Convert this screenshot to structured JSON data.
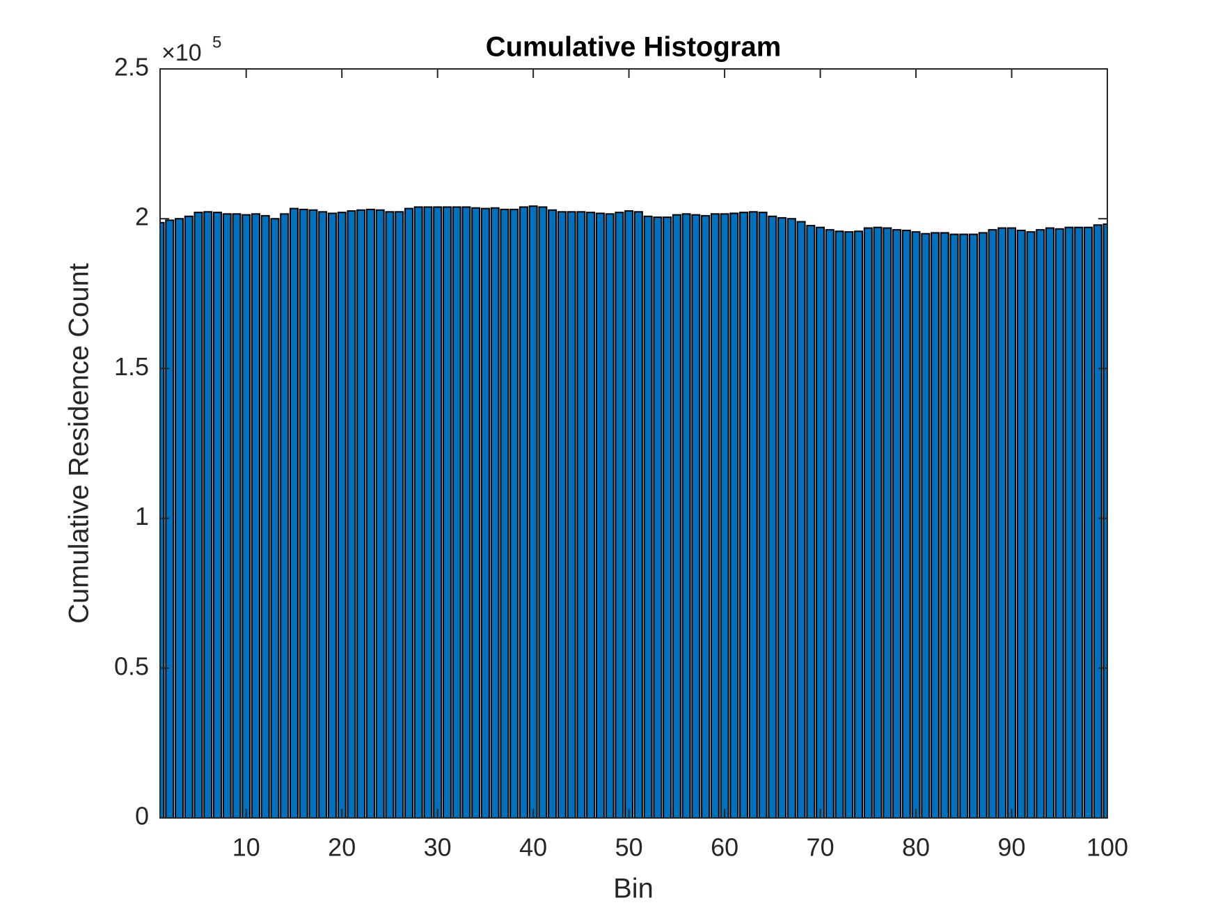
{
  "chart_data": {
    "type": "bar",
    "title": "Cumulative Histogram",
    "x_label": "Bin",
    "y_label": "Cumulative Residence Count",
    "y_multiplier": "×10",
    "y_exponent": "5",
    "x": [
      1,
      2,
      3,
      4,
      5,
      6,
      7,
      8,
      9,
      10,
      11,
      12,
      13,
      14,
      15,
      16,
      17,
      18,
      19,
      20,
      21,
      22,
      23,
      24,
      25,
      26,
      27,
      28,
      29,
      30,
      31,
      32,
      33,
      34,
      35,
      36,
      37,
      38,
      39,
      40,
      41,
      42,
      43,
      44,
      45,
      46,
      47,
      48,
      49,
      50,
      51,
      52,
      53,
      54,
      55,
      56,
      57,
      58,
      59,
      60,
      61,
      62,
      63,
      64,
      65,
      66,
      67,
      68,
      69,
      70,
      71,
      72,
      73,
      74,
      75,
      76,
      77,
      78,
      79,
      80,
      81,
      82,
      83,
      84,
      85,
      86,
      87,
      88,
      89,
      90,
      91,
      92,
      93,
      94,
      95,
      96,
      97,
      98,
      99,
      100
    ],
    "values": [
      198700,
      199500,
      200000,
      200800,
      202100,
      202300,
      202100,
      201600,
      201600,
      201300,
      201600,
      201000,
      200000,
      201600,
      203400,
      203100,
      202900,
      202300,
      201800,
      202100,
      202600,
      202900,
      203100,
      202900,
      202300,
      202300,
      203400,
      203900,
      203900,
      203900,
      203900,
      203900,
      203900,
      203600,
      203400,
      203600,
      203100,
      203100,
      203900,
      204200,
      203900,
      202900,
      202300,
      202300,
      202300,
      202100,
      201800,
      201600,
      202100,
      202600,
      202300,
      200800,
      200500,
      200500,
      201300,
      201600,
      201300,
      201000,
      201600,
      201600,
      201800,
      202100,
      202300,
      202100,
      200800,
      200300,
      200000,
      199000,
      197700,
      197100,
      196300,
      195800,
      195600,
      195800,
      196900,
      197100,
      196900,
      196300,
      196100,
      195600,
      195000,
      195300,
      195300,
      194800,
      194800,
      194800,
      195300,
      196300,
      196900,
      196900,
      196100,
      195600,
      196300,
      196900,
      196600,
      197100,
      197100,
      197100,
      197900,
      198200
    ],
    "color": "#0072bd",
    "bar_width": 0.8,
    "xlim": [
      1,
      100
    ],
    "xticks": [
      10,
      20,
      30,
      40,
      50,
      60,
      70,
      80,
      90,
      100
    ],
    "ylim": [
      0,
      250000
    ],
    "yticks": [
      {
        "value": 0,
        "label": "0"
      },
      {
        "value": 50000,
        "label": "0.5"
      },
      {
        "value": 100000,
        "label": "1"
      },
      {
        "value": 150000,
        "label": "1.5"
      },
      {
        "value": 200000,
        "label": "2"
      },
      {
        "value": 250000,
        "label": "2.5"
      }
    ],
    "grid": false
  }
}
